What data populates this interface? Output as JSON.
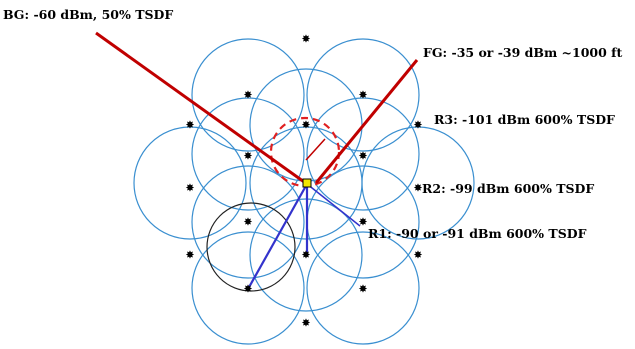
{
  "labels": {
    "bg": "BG: -60 dBm, 50% TSDF",
    "fg": "FG: -35 or -39 dBm ~1000 ft",
    "r3": "R3: -101 dBm 600% TSDF",
    "r2": "R2: -99 dBm 600% TSDF",
    "r1": "R1: -90 or -91 dBm 600% TSDF"
  },
  "colors": {
    "cell_circle": "#3a8fd0",
    "interference_line": "#c00000",
    "dashed_circle": "#e02020",
    "link_line": "#3333cc",
    "highlight_circle": "#222222",
    "node": "#000000",
    "center_node": "#f2e600"
  },
  "icons": {
    "node": "star-node-icon",
    "center": "yellow-square-icon"
  }
}
